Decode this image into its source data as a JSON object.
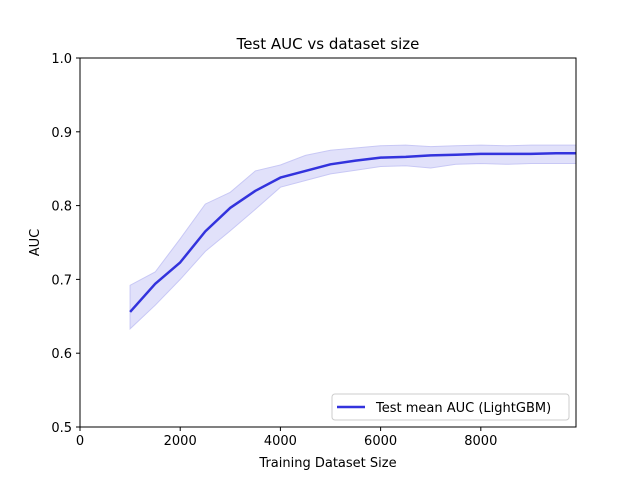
{
  "chart_data": {
    "type": "line",
    "title": "Test AUC vs dataset size",
    "xlabel": "Training Dataset Size",
    "ylabel": "AUC",
    "xlim": [
      0,
      9900
    ],
    "ylim": [
      0.5,
      1.0
    ],
    "xticks": [
      0,
      2000,
      4000,
      6000,
      8000
    ],
    "xtick_labels": [
      "0",
      "2000",
      "4000",
      "6000",
      "8000"
    ],
    "yticks": [
      0.5,
      0.6,
      0.7,
      0.8,
      0.9,
      1.0
    ],
    "ytick_labels": [
      "0.5",
      "0.6",
      "0.7",
      "0.8",
      "0.9",
      "1.0"
    ],
    "grid": false,
    "legend_position": "lower-right",
    "x": [
      1000,
      1500,
      2000,
      2500,
      3000,
      3500,
      4000,
      4500,
      5000,
      5500,
      6000,
      6500,
      7000,
      7500,
      8000,
      8500,
      9000,
      9500,
      9900
    ],
    "series": [
      {
        "name": "Test mean AUC (LightGBM)",
        "color": "#3333dd",
        "band_color": "#c8c8f5",
        "values": [
          0.656,
          0.694,
          0.723,
          0.765,
          0.797,
          0.82,
          0.838,
          0.847,
          0.856,
          0.861,
          0.865,
          0.866,
          0.868,
          0.869,
          0.87,
          0.87,
          0.87,
          0.871,
          0.871
        ],
        "upper": [
          0.692,
          0.71,
          0.755,
          0.802,
          0.818,
          0.847,
          0.855,
          0.868,
          0.875,
          0.878,
          0.881,
          0.882,
          0.88,
          0.881,
          0.882,
          0.881,
          0.882,
          0.882,
          0.882
        ],
        "lower": [
          0.633,
          0.665,
          0.7,
          0.738,
          0.766,
          0.795,
          0.825,
          0.834,
          0.843,
          0.848,
          0.853,
          0.854,
          0.851,
          0.856,
          0.857,
          0.856,
          0.857,
          0.857,
          0.857
        ]
      }
    ]
  }
}
